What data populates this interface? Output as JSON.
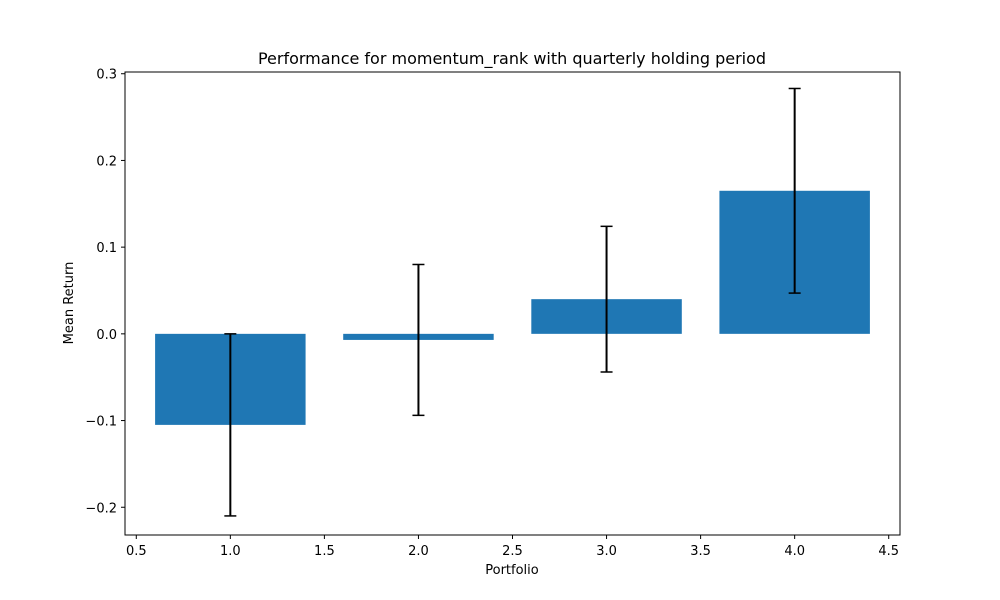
{
  "chart_data": {
    "type": "bar",
    "title": "Performance for momentum_rank with quarterly holding period",
    "xlabel": "Portfolio",
    "ylabel": "Mean Return",
    "x": [
      1.0,
      2.0,
      3.0,
      4.0
    ],
    "values": [
      -0.105,
      -0.007,
      0.04,
      0.165
    ],
    "error": [
      0.105,
      0.087,
      0.084,
      0.118
    ],
    "bar_width": 0.8,
    "xlim": [
      0.44,
      4.56
    ],
    "ylim": [
      -0.232,
      0.302
    ],
    "xticks": [
      0.5,
      1.0,
      1.5,
      2.0,
      2.5,
      3.0,
      3.5,
      4.0,
      4.5
    ],
    "xtick_labels": [
      "0.5",
      "1.0",
      "1.5",
      "2.0",
      "2.5",
      "3.0",
      "3.5",
      "4.0",
      "4.5"
    ],
    "yticks": [
      -0.2,
      -0.1,
      0.0,
      0.1,
      0.2,
      0.3
    ],
    "ytick_labels": [
      "−0.2",
      "−0.1",
      "0.0",
      "0.1",
      "0.2",
      "0.3"
    ],
    "grid": false,
    "bar_color": "#1f77b4",
    "error_color": "#000000"
  }
}
